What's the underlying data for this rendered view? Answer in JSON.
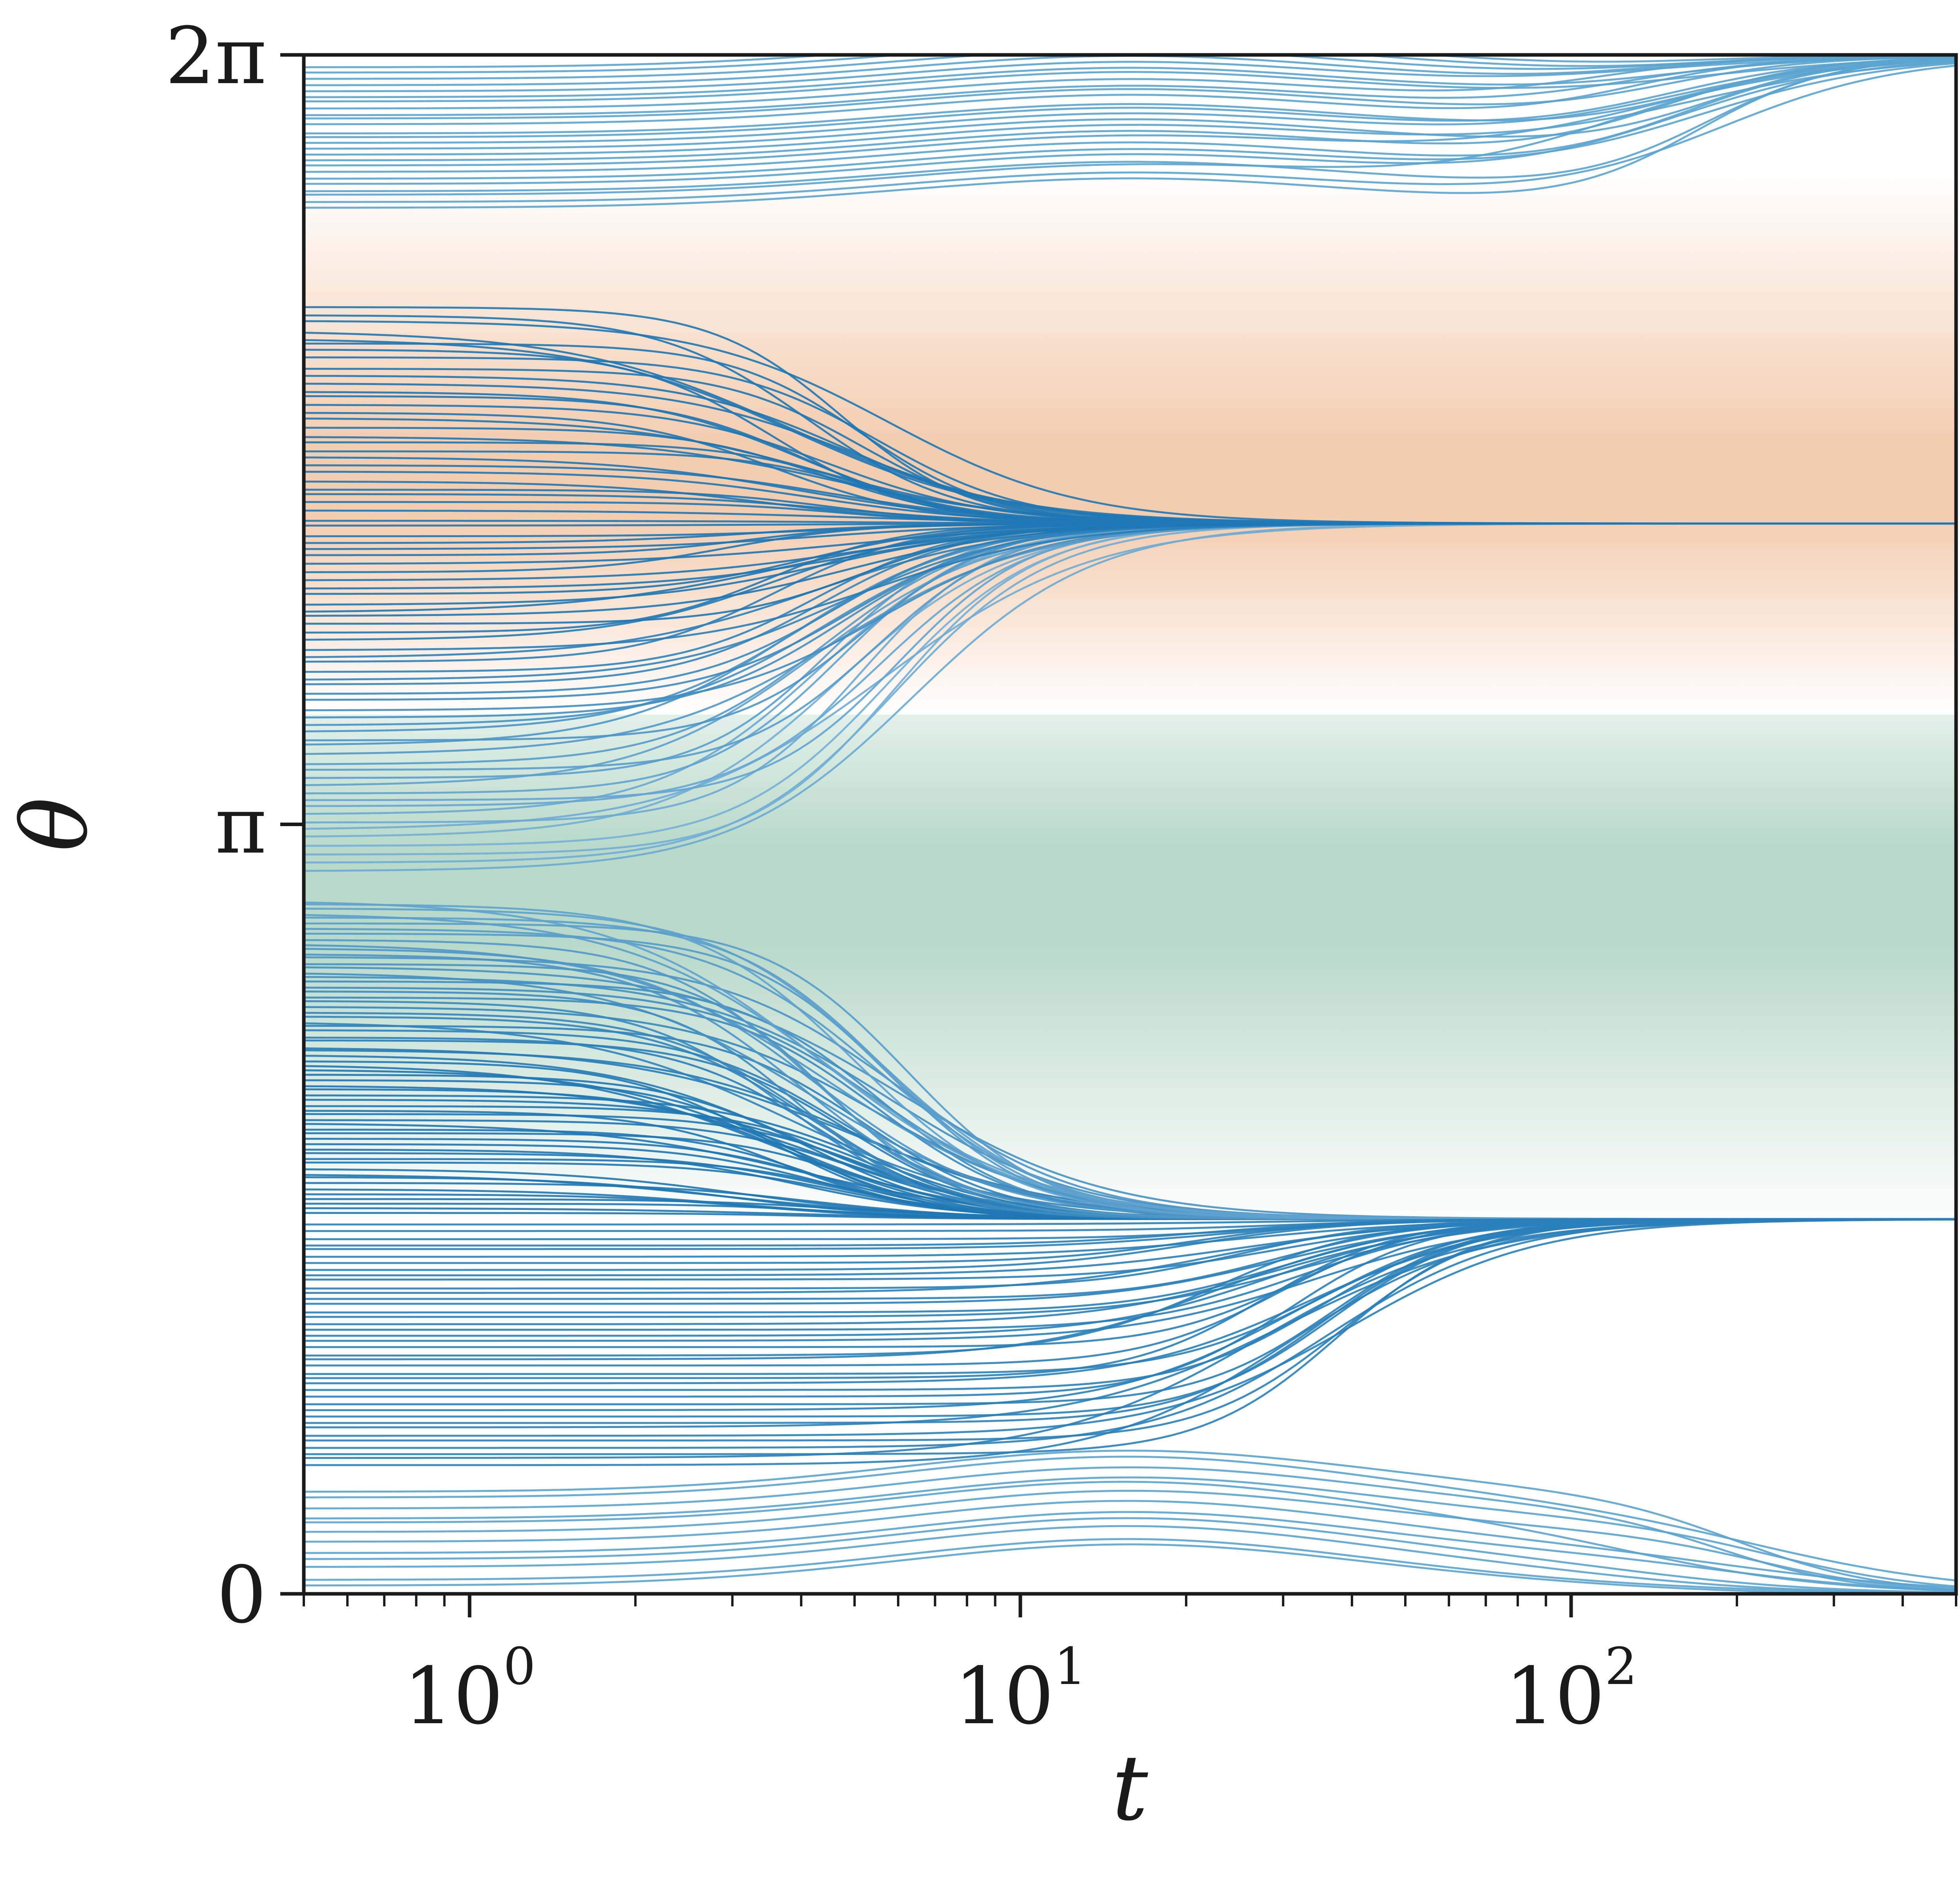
{
  "chart_data": {
    "type": "line",
    "title": "",
    "xlabel": "t",
    "ylabel": "θ",
    "xscale": "log",
    "xlim": [
      0.5,
      500
    ],
    "ylim": [
      0,
      6.2832
    ],
    "grid": false,
    "legend": "none",
    "x_ticks": [
      {
        "value": 1,
        "base": "10",
        "exp": "0"
      },
      {
        "value": 10,
        "base": "10",
        "exp": "1"
      },
      {
        "value": 100,
        "base": "10",
        "exp": "2"
      }
    ],
    "y_ticks": [
      {
        "value": 0,
        "label": "0"
      },
      {
        "value": 3.1416,
        "label": "π"
      },
      {
        "value": 6.2832,
        "label": "2π"
      }
    ],
    "background_bands": [
      {
        "name": "orange-band",
        "color": "#f3cdb0",
        "center": 4.5,
        "halfwidth": 1.3
      },
      {
        "name": "green-band",
        "color": "#b9d9ca",
        "center": 2.75,
        "halfwidth": 1.25
      }
    ],
    "attractors": [
      {
        "theta": 4.37,
        "settle_t": 9
      },
      {
        "theta": 1.53,
        "settle_t": 50
      },
      {
        "theta": 6.28,
        "settle_t": 400
      }
    ],
    "series_groups": [
      {
        "name": "group-a",
        "theta0_range": [
          2.95,
          5.28
        ],
        "count": 75,
        "target": 4.37,
        "t_mid": 4.5,
        "color": "#1f77b4"
      },
      {
        "name": "group-b",
        "theta0_range": [
          1.55,
          2.85
        ],
        "count": 65,
        "target": 1.53,
        "t_mid": 4.5,
        "color": "#1f77b4"
      },
      {
        "name": "group-c",
        "theta0_range": [
          0.52,
          1.52
        ],
        "count": 40,
        "target": 1.53,
        "t_mid": 30,
        "color": "#2a7fba"
      },
      {
        "name": "group-d",
        "theta0_range": [
          5.65,
          6.25
        ],
        "count": 25,
        "target": 6.28,
        "t_mid": 150,
        "color": "#5ba3cf"
      },
      {
        "name": "group-e",
        "theta0_range": [
          0.02,
          0.45
        ],
        "count": 12,
        "target": 0.0,
        "t_mid": 200,
        "color": "#5ba3cf"
      }
    ],
    "colors": {
      "line_dark": "#1f77b4",
      "line_light": "#9cc9e6",
      "axis": "#1a1a1a"
    }
  }
}
